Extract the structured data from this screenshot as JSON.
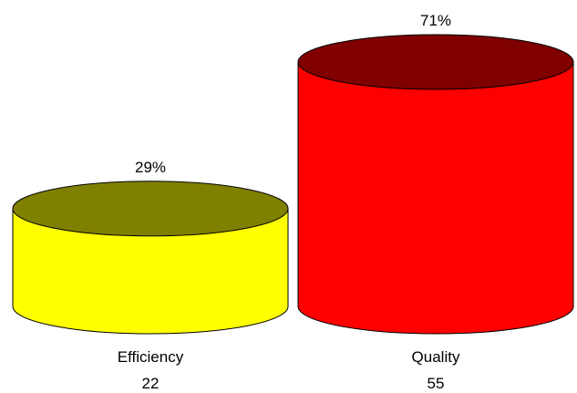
{
  "chart_data": {
    "type": "bar",
    "style": "3d-cylinder",
    "categories": [
      "Efficiency",
      "Quality"
    ],
    "values": [
      22,
      55
    ],
    "percent_labels": [
      "29%",
      "71%"
    ],
    "ylim": [
      0,
      55
    ],
    "grid": false,
    "legend": "none",
    "colors": {
      "body": [
        "#ffff00",
        "#ff0000"
      ],
      "top": [
        "#808000",
        "#800000"
      ],
      "outline": "#000000"
    }
  }
}
